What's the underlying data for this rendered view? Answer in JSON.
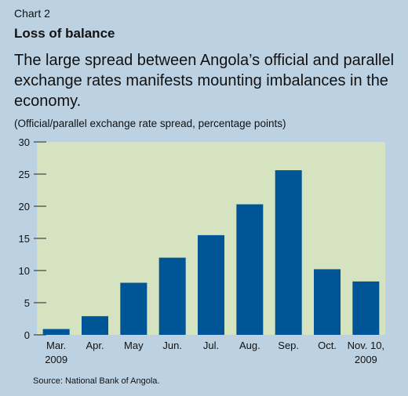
{
  "header": {
    "kicker": "Chart 2",
    "title": "Loss of balance",
    "subtitle": "The large spread between Angola’s official and parallel exchange rates manifests mounting imbalances in the economy.",
    "unit_note": "(Official/parallel exchange rate spread, percentage points)"
  },
  "source": "Source: National Bank of Angola.",
  "colors": {
    "background": "#bcd2e3",
    "plot_area": "#d6e3c0",
    "bar": "#005596"
  },
  "chart_data": {
    "type": "bar",
    "categories": [
      [
        "Mar.",
        "2009"
      ],
      [
        "Apr."
      ],
      [
        "May"
      ],
      [
        "Jun."
      ],
      [
        "Jul."
      ],
      [
        "Aug."
      ],
      [
        "Sep."
      ],
      [
        "Oct."
      ],
      [
        "Nov. 10,",
        "2009"
      ]
    ],
    "values": [
      0.9,
      2.9,
      8.1,
      12.0,
      15.5,
      20.3,
      25.6,
      10.2,
      8.3
    ],
    "yticks": [
      0,
      5,
      10,
      15,
      20,
      25,
      30
    ],
    "ylim": [
      0,
      30
    ],
    "grid": false
  }
}
